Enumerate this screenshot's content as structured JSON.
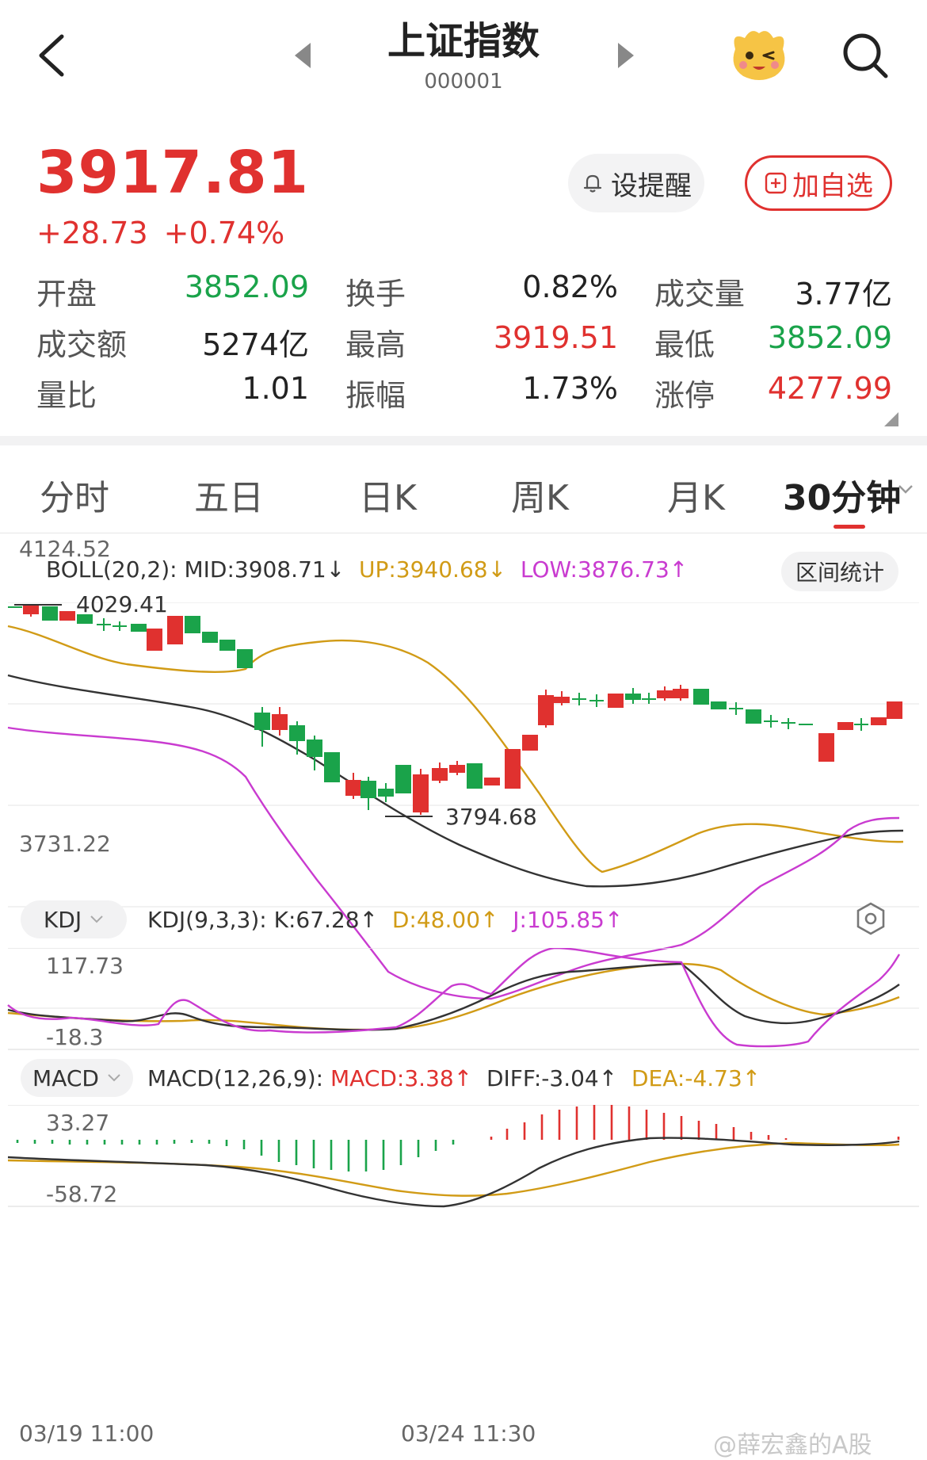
{
  "header": {
    "title": "上证指数",
    "code": "000001",
    "icons": [
      "back-arrow-icon",
      "prev-triangle-icon",
      "next-triangle-icon",
      "mascot-icon",
      "search-icon"
    ]
  },
  "quote": {
    "price": "3917.81",
    "change": "+28.73",
    "change_pct": "+0.74%",
    "remind_label": "设提醒",
    "add_label": "加自选",
    "up_color": "#e0312f",
    "down_color": "#1aa34a"
  },
  "stats": [
    [
      {
        "label": "开盘",
        "value": "3852.09",
        "color": "#1aa34a"
      },
      {
        "label": "换手",
        "value": "0.82%",
        "color": "#222"
      },
      {
        "label": "成交量",
        "value": "3.77亿",
        "color": "#222"
      }
    ],
    [
      {
        "label": "成交额",
        "value": "5274亿",
        "color": "#222"
      },
      {
        "label": "最高",
        "value": "3919.51",
        "color": "#e0312f"
      },
      {
        "label": "最低",
        "value": "3852.09",
        "color": "#1aa34a"
      }
    ],
    [
      {
        "label": "量比",
        "value": "1.01",
        "color": "#222"
      },
      {
        "label": "振幅",
        "value": "1.73%",
        "color": "#222"
      },
      {
        "label": "涨停",
        "value": "4277.99",
        "color": "#e0312f"
      }
    ]
  ],
  "tabs": [
    {
      "label": "分时",
      "active": false
    },
    {
      "label": "五日",
      "active": false
    },
    {
      "label": "日K",
      "active": false
    },
    {
      "label": "周K",
      "active": false
    },
    {
      "label": "月K",
      "active": false
    },
    {
      "label": "30分钟",
      "active": true
    }
  ],
  "boll": {
    "name": "BOLL(20,2):",
    "mid": "MID:3908.71↓",
    "up": "UP:3940.68↓",
    "low": "LOW:3876.73↑",
    "stats_button": "区间统计",
    "axis_top": "4124.52",
    "axis_bottom": "3731.22",
    "high_mark": "4029.41",
    "low_mark": "3794.68"
  },
  "kdj": {
    "selector": "KDJ",
    "name": "KDJ(9,3,3):",
    "k": "K:67.28↑",
    "d": "D:48.00↑",
    "j": "J:105.85↑",
    "axis_top": "117.73",
    "axis_bottom": "-18.3"
  },
  "macd": {
    "selector": "MACD",
    "name": "MACD(12,26,9):",
    "macd": "MACD:3.38↑",
    "diff": "DIFF:-3.04↑",
    "dea": "DEA:-4.73↑",
    "axis_top": "33.27",
    "axis_bottom": "-58.72"
  },
  "time_axis": {
    "start": "03/19 11:00",
    "mid": "03/24 11:30"
  },
  "watermark": "@薛宏鑫的A股"
}
